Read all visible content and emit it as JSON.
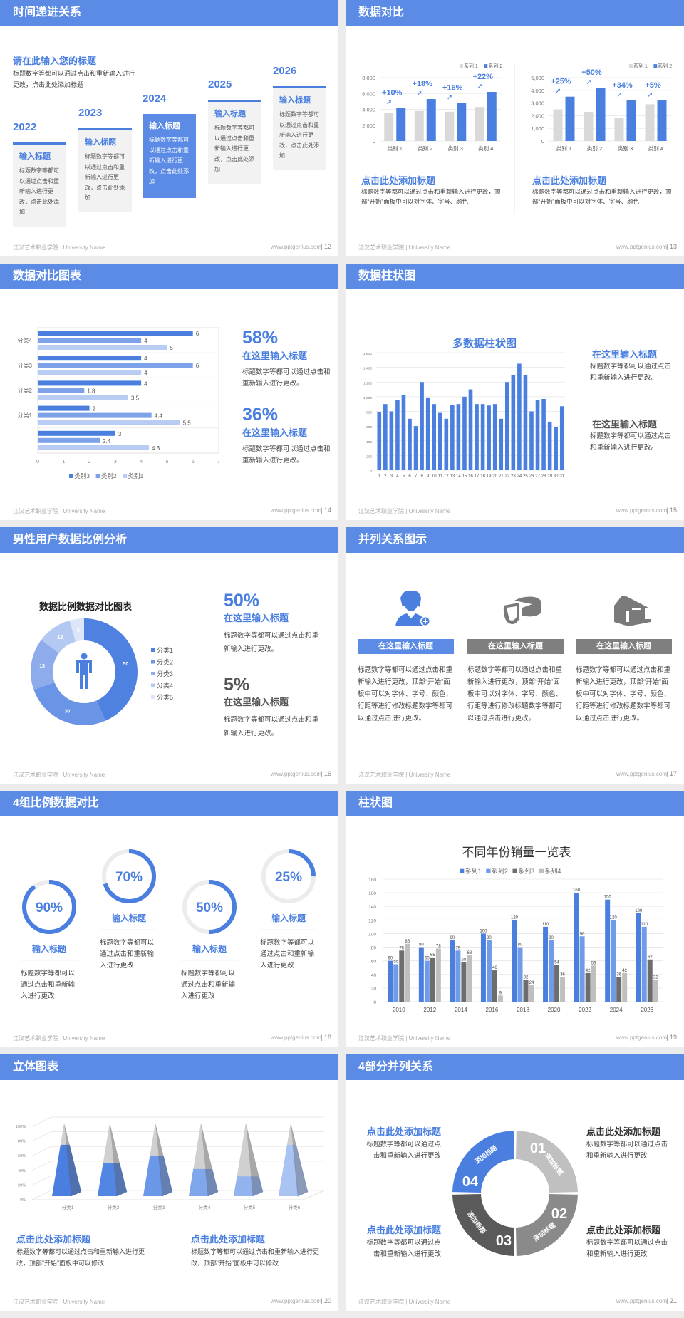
{
  "footer": {
    "left": "江汉艺术职业学院 | University Name",
    "right": "www.pptgenius.com"
  },
  "colors": {
    "header": "#5b8be4",
    "accent": "#4a7fe0",
    "gray": "#7f7f7f",
    "light_gray": "#d9d9d9"
  },
  "slides": [
    {
      "page": "| 12",
      "title": "时间递进关系",
      "subtitle": "请在此输入您的标题",
      "desc": "标题数字等都可以通过点击和重新输入进行更改，点击此处添加标题",
      "steps": [
        {
          "year": "2022",
          "heading": "输入标题",
          "text": "标题数字等都可以通过点击和重新输入进行更改，点击此处添加"
        },
        {
          "year": "2023",
          "heading": "输入标题",
          "text": "标题数字等都可以通过点击和重新输入进行更改，点击此处添加"
        },
        {
          "year": "2024",
          "heading": "输入标题",
          "text": "标题数字等都可以通过点击和重新输入进行更改，点击此处添加"
        },
        {
          "year": "2025",
          "heading": "输入标题",
          "text": "标题数字等都可以通过点击和重新输入进行更改，点击此处添加"
        },
        {
          "year": "2026",
          "heading": "输入标题",
          "text": "标题数字等都可以通过点击和重新输入进行更改，点击此处添加"
        }
      ]
    },
    {
      "page": "| 13",
      "title": "数据对比",
      "blocks": [
        {
          "heading": "点击此处添加标题",
          "text": "标题数字等都可以通过点击和重新输入进行更改，顶部“开始”面板中可以对字体、字号、颜色"
        },
        {
          "heading": "点击此处添加标题",
          "text": "标题数字等都可以通过点击和重新输入进行更改，顶部“开始”面板中可以对字体、字号、颜色"
        }
      ]
    },
    {
      "page": "| 14",
      "title": "数据对比图表",
      "stats": [
        {
          "value": "58%",
          "heading": "在这里输入标题",
          "text": "标题数字等都可以通过点击和重新输入进行更改。"
        },
        {
          "value": "36%",
          "heading": "在这里输入标题",
          "text": "标题数字等都可以通过点击和重新输入进行更改。"
        }
      ]
    },
    {
      "page": "| 15",
      "title": "数据柱状图",
      "blocks": [
        {
          "heading": "在这里输入标题",
          "text": "标题数字等都可以通过点击和重新输入进行更改。"
        },
        {
          "heading": "在这里输入标题",
          "text": "标题数字等都可以通过点击和重新输入进行更改。"
        }
      ]
    },
    {
      "page": "| 16",
      "title": "男性用户数据比例分析",
      "stats": [
        {
          "value": "50%",
          "heading": "在这里输入标题",
          "text": "标题数字等都可以通过点击和重新输入进行更改。"
        },
        {
          "value": "5%",
          "heading": "在这里输入标题",
          "text": "标题数字等都可以通过点击和重新输入进行更改。"
        }
      ]
    },
    {
      "page": "| 17",
      "title": "并列关系图示",
      "columns": [
        {
          "icon": "user-add-icon",
          "label": "在这里输入标题",
          "text": "标题数字等都可以通过点击和重新输入进行更改，顶部“开始”面板中可以对字体、字号、颜色、行距等进行修改标题数字等都可以通过点击进行更改。"
        },
        {
          "icon": "pie-chart-icon",
          "label": "在这里输入标题",
          "text": "标题数字等都可以通过点击和重新输入进行更改，顶部“开始”面板中可以对字体、字号、颜色、行距等进行修改标题数字等都可以通过点击进行更改。"
        },
        {
          "icon": "building-icon",
          "label": "在这里输入标题",
          "text": "标题数字等都可以通过点击和重新输入进行更改，顶部“开始”面板中可以对字体、字号、颜色、行距等进行修改标题数字等都可以通过点击进行更改。"
        }
      ]
    },
    {
      "page": "| 18",
      "title": "4组比例数据对比",
      "rings": [
        {
          "value": 90,
          "label": "90%",
          "heading": "输入标题",
          "text": "标题数字等都可以通过点击和重新输入进行更改"
        },
        {
          "value": 70,
          "label": "70%",
          "heading": "输入标题",
          "text": "标题数字等都可以通过点击和重新输入进行更改"
        },
        {
          "value": 50,
          "label": "50%",
          "heading": "输入标题",
          "text": "标题数字等都可以通过点击和重新输入进行更改"
        },
        {
          "value": 25,
          "label": "25%",
          "heading": "输入标题",
          "text": "标题数字等都可以通过点击和重新输入进行更改"
        }
      ]
    },
    {
      "page": "| 19",
      "title": "柱状图"
    },
    {
      "page": "| 20",
      "title": "立体图表",
      "blocks": [
        {
          "heading": "点击此处添加标题",
          "text": "标题数字等都可以通过点击和重新输入进行更改，顶部“开始”面板中可以修改"
        },
        {
          "heading": "点击此处添加标题",
          "text": "标题数字等都可以通过点击和重新输入进行更改，顶部“开始”面板中可以修改"
        }
      ]
    },
    {
      "page": "| 21",
      "title": "4部分并列关系",
      "segments": [
        {
          "number": "01",
          "label": "添加标题",
          "color": "#c0c0c0"
        },
        {
          "number": "02",
          "label": "添加标题",
          "color": "#8a8a8a"
        },
        {
          "number": "03",
          "label": "添加标题",
          "color": "#5a5a5a"
        },
        {
          "number": "04",
          "label": "添加标题",
          "color": "#4a7fe0"
        }
      ],
      "blocks": [
        {
          "heading": "点击此处添加标题",
          "text": "标题数字等都可以通过点击和重新输入进行更改"
        },
        {
          "heading": "点击此处添加标题",
          "text": "标题数字等都可以通过点击和重新输入进行更改"
        },
        {
          "heading": "点击此处添加标题",
          "text": "标题数字等都可以通过点击和重新输入进行更改"
        },
        {
          "heading": "点击此处添加标题",
          "text": "标题数字等都可以通过点击和重新输入进行更改"
        }
      ]
    }
  ],
  "chart_data": [
    {
      "type": "bar",
      "categories": [
        "类别 1",
        "类别 2",
        "类别 3",
        "类别 4"
      ],
      "ylim": [
        0,
        8000
      ],
      "ytick_step": 2000,
      "grid": true,
      "legend": "top-right",
      "series": [
        {
          "name": "系列 1",
          "values": [
            3500,
            3800,
            3700,
            4300
          ],
          "color": "#d9d9d9"
        },
        {
          "name": "系列 2",
          "values": [
            4200,
            5300,
            4800,
            6200
          ],
          "color": "#4a7fe0"
        }
      ],
      "annotations": [
        "+10%",
        "+18%",
        "+16%",
        "+22%"
      ]
    },
    {
      "type": "bar",
      "categories": [
        "类别 1",
        "类别 2",
        "类别 3",
        "类别 4"
      ],
      "ylim": [
        0,
        5000
      ],
      "ytick_step": 1000,
      "grid": true,
      "legend": "top-right",
      "series": [
        {
          "name": "系列 1",
          "values": [
            2500,
            2300,
            1800,
            2900
          ],
          "color": "#d9d9d9"
        },
        {
          "name": "系列 2",
          "values": [
            3500,
            4200,
            3200,
            3200
          ],
          "color": "#4a7fe0"
        }
      ],
      "annotations": [
        "+25%",
        "+50%",
        "+34%",
        "+5%"
      ]
    },
    {
      "type": "bar",
      "orientation": "horizontal",
      "categories": [
        "分类4",
        "分类3",
        "分类2",
        "分类1",
        ""
      ],
      "xlim": [
        0,
        7
      ],
      "legend": "bottom",
      "series": [
        {
          "name": "类别3",
          "values": [
            6,
            4,
            4,
            2,
            3
          ],
          "color": "#4a7fe0"
        },
        {
          "name": "类别2",
          "values": [
            4,
            6,
            1.8,
            4.4,
            2.4
          ],
          "color": "#7ea2ea"
        },
        {
          "name": "类别1",
          "values": [
            5,
            4,
            3.5,
            5.5,
            4.3
          ],
          "color": "#b9cdf4"
        }
      ]
    },
    {
      "type": "bar",
      "title": "多数据柱状图",
      "categories": [
        "1",
        "2",
        "3",
        "4",
        "5",
        "6",
        "7",
        "8",
        "9",
        "10",
        "11",
        "12",
        "13",
        "14",
        "15",
        "16",
        "17",
        "18",
        "19",
        "20",
        "21",
        "22",
        "23",
        "24",
        "25",
        "26",
        "27",
        "28",
        "29",
        "30",
        "31"
      ],
      "ylim": [
        0,
        1600
      ],
      "ytick_step": 200,
      "grid": true,
      "series": [
        {
          "values": [
            790,
            900,
            800,
            950,
            1020,
            700,
            600,
            1200,
            990,
            900,
            780,
            700,
            890,
            900,
            1000,
            1100,
            900,
            900,
            880,
            900,
            700,
            1200,
            1300,
            1450,
            1300,
            800,
            960,
            970,
            660,
            590,
            870
          ],
          "color": "#4a7fe0"
        }
      ]
    },
    {
      "type": "pie",
      "donut": true,
      "title": "数据比例数据对比图表",
      "legend": "right",
      "categories": [
        "分类1",
        "分类2",
        "分类3",
        "分类4",
        "分类5"
      ],
      "values": [
        50,
        30,
        18,
        12,
        5
      ],
      "colors": [
        "#4f81e0",
        "#6a95e6",
        "#8eacec",
        "#b4c9f2",
        "#dde6f8"
      ]
    },
    {
      "type": "bar",
      "title": "不同年份销量一览表",
      "categories": [
        "2010",
        "2012",
        "2014",
        "2016",
        "2018",
        "2020",
        "2022",
        "2024",
        "2026"
      ],
      "ylim": [
        0,
        180
      ],
      "ytick_step": 20,
      "grid": true,
      "legend": "top",
      "series": [
        {
          "name": "系列1",
          "values": [
            60,
            80,
            90,
            100,
            120,
            110,
            160,
            150,
            130
          ],
          "color": "#4a7fe0"
        },
        {
          "name": "系列2",
          "values": [
            55,
            60,
            75,
            90,
            80,
            90,
            96,
            120,
            110
          ],
          "color": "#6f9be8"
        },
        {
          "name": "系列3",
          "values": [
            75,
            65,
            58,
            46,
            32,
            54,
            42,
            36,
            62
          ],
          "color": "#6d6d6d"
        },
        {
          "name": "系列4",
          "values": [
            85,
            78,
            68,
            9,
            24,
            36,
            53,
            42,
            32
          ],
          "color": "#bfbfbf"
        }
      ]
    },
    {
      "type": "bar",
      "style": "3d-pyramid",
      "categories": [
        "分类1",
        "分类2",
        "分类3",
        "分类4",
        "分类5",
        "分类6"
      ],
      "ylim": [
        0,
        100
      ],
      "ytick_labels": [
        "0%",
        "20%",
        "40%",
        "60%",
        "80%",
        "100%"
      ],
      "grid": true,
      "values": [
        70,
        45,
        55,
        37,
        27,
        70
      ],
      "colors": [
        "#4a7fe0",
        "#5386e2",
        "#6b97e8",
        "#80a6ec",
        "#93b3ef",
        "#a9c3f3"
      ]
    }
  ]
}
